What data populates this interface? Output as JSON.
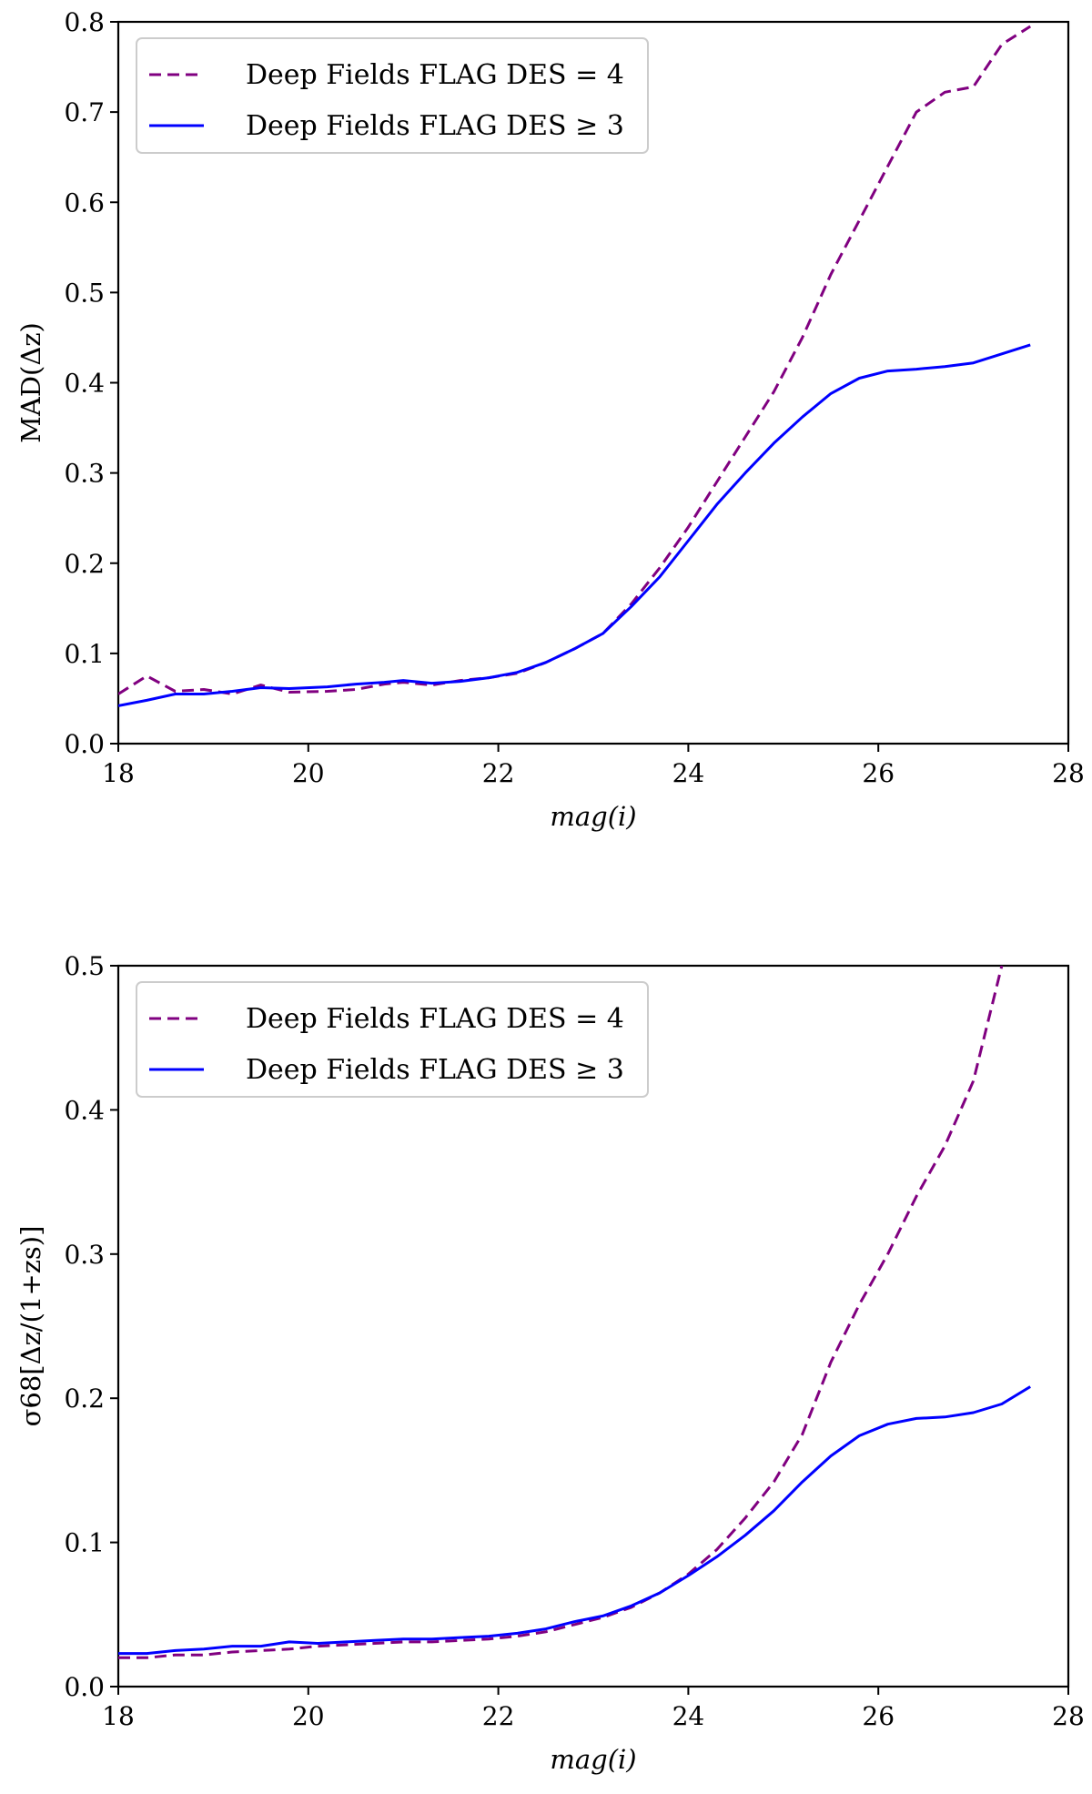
{
  "chart_data": [
    {
      "type": "line",
      "xlabel": "mag(i)",
      "ylabel": "MAD(Δz)",
      "xlim": [
        18,
        28
      ],
      "ylim": [
        0.0,
        0.8
      ],
      "xticks": [
        "18",
        "20",
        "22",
        "24",
        "26",
        "28"
      ],
      "yticks": [
        "0.0",
        "0.1",
        "0.2",
        "0.3",
        "0.4",
        "0.5",
        "0.6",
        "0.7",
        "0.8"
      ],
      "grid": false,
      "legend_position": "top-left",
      "series": [
        {
          "name": "Deep Fields FLAG DES = 4",
          "color": "#800080",
          "style": "dashed",
          "x": [
            18.0,
            18.3,
            18.6,
            18.9,
            19.2,
            19.5,
            19.8,
            20.2,
            20.5,
            20.8,
            21.0,
            21.3,
            21.6,
            21.9,
            22.2,
            22.5,
            22.8,
            23.1,
            23.4,
            23.7,
            24.0,
            24.3,
            24.6,
            24.9,
            25.2,
            25.5,
            25.8,
            26.1,
            26.4,
            26.7,
            27.0,
            27.3,
            27.6
          ],
          "y": [
            0.055,
            0.075,
            0.058,
            0.06,
            0.055,
            0.065,
            0.057,
            0.058,
            0.06,
            0.066,
            0.068,
            0.065,
            0.07,
            0.073,
            0.078,
            0.09,
            0.105,
            0.122,
            0.155,
            0.195,
            0.24,
            0.29,
            0.34,
            0.39,
            0.45,
            0.52,
            0.58,
            0.64,
            0.7,
            0.722,
            0.728,
            0.775,
            0.795
          ]
        },
        {
          "name": "Deep Fields FLAG DES ≥ 3",
          "color": "#0000ff",
          "style": "solid",
          "x": [
            18.0,
            18.3,
            18.6,
            18.9,
            19.2,
            19.5,
            19.8,
            20.2,
            20.5,
            20.8,
            21.0,
            21.3,
            21.6,
            21.9,
            22.2,
            22.5,
            22.8,
            23.1,
            23.4,
            23.7,
            24.0,
            24.3,
            24.6,
            24.9,
            25.2,
            25.5,
            25.8,
            26.1,
            26.4,
            26.7,
            27.0,
            27.3,
            27.6
          ],
          "y": [
            0.042,
            0.048,
            0.055,
            0.055,
            0.058,
            0.062,
            0.061,
            0.063,
            0.066,
            0.068,
            0.07,
            0.067,
            0.069,
            0.073,
            0.079,
            0.09,
            0.105,
            0.122,
            0.152,
            0.185,
            0.225,
            0.265,
            0.3,
            0.333,
            0.362,
            0.388,
            0.405,
            0.413,
            0.415,
            0.418,
            0.422,
            0.432,
            0.442
          ]
        }
      ]
    },
    {
      "type": "line",
      "xlabel": "mag(i)",
      "ylabel": "σ68[Δz/(1+zs)]",
      "xlim": [
        18,
        28
      ],
      "ylim": [
        0.0,
        0.5
      ],
      "xticks": [
        "18",
        "20",
        "22",
        "24",
        "26",
        "28"
      ],
      "yticks": [
        "0.0",
        "0.1",
        "0.2",
        "0.3",
        "0.4",
        "0.5"
      ],
      "grid": false,
      "legend_position": "top-left",
      "series": [
        {
          "name": "Deep Fields FLAG DES = 4",
          "color": "#800080",
          "style": "dashed",
          "x": [
            18.0,
            18.3,
            18.6,
            18.9,
            19.2,
            19.5,
            19.8,
            20.1,
            20.4,
            20.7,
            21.0,
            21.3,
            21.6,
            21.9,
            22.2,
            22.5,
            22.8,
            23.1,
            23.4,
            23.7,
            24.0,
            24.3,
            24.6,
            24.9,
            25.2,
            25.5,
            25.8,
            26.1,
            26.4,
            26.7,
            27.0,
            27.3
          ],
          "y": [
            0.02,
            0.02,
            0.022,
            0.022,
            0.024,
            0.025,
            0.026,
            0.028,
            0.029,
            0.03,
            0.031,
            0.031,
            0.032,
            0.033,
            0.035,
            0.038,
            0.043,
            0.048,
            0.055,
            0.065,
            0.078,
            0.095,
            0.117,
            0.142,
            0.175,
            0.225,
            0.265,
            0.3,
            0.34,
            0.375,
            0.42,
            0.5
          ]
        },
        {
          "name": "Deep Fields FLAG DES ≥ 3",
          "color": "#0000ff",
          "style": "solid",
          "x": [
            18.0,
            18.3,
            18.6,
            18.9,
            19.2,
            19.5,
            19.8,
            20.1,
            20.4,
            20.7,
            21.0,
            21.3,
            21.6,
            21.9,
            22.2,
            22.5,
            22.8,
            23.1,
            23.4,
            23.7,
            24.0,
            24.3,
            24.6,
            24.9,
            25.2,
            25.5,
            25.8,
            26.1,
            26.4,
            26.7,
            27.0,
            27.3,
            27.6
          ],
          "y": [
            0.023,
            0.023,
            0.025,
            0.026,
            0.028,
            0.028,
            0.031,
            0.03,
            0.031,
            0.032,
            0.033,
            0.033,
            0.034,
            0.035,
            0.037,
            0.04,
            0.045,
            0.049,
            0.056,
            0.065,
            0.077,
            0.09,
            0.105,
            0.122,
            0.142,
            0.16,
            0.174,
            0.182,
            0.186,
            0.187,
            0.19,
            0.196,
            0.208
          ]
        }
      ]
    }
  ]
}
